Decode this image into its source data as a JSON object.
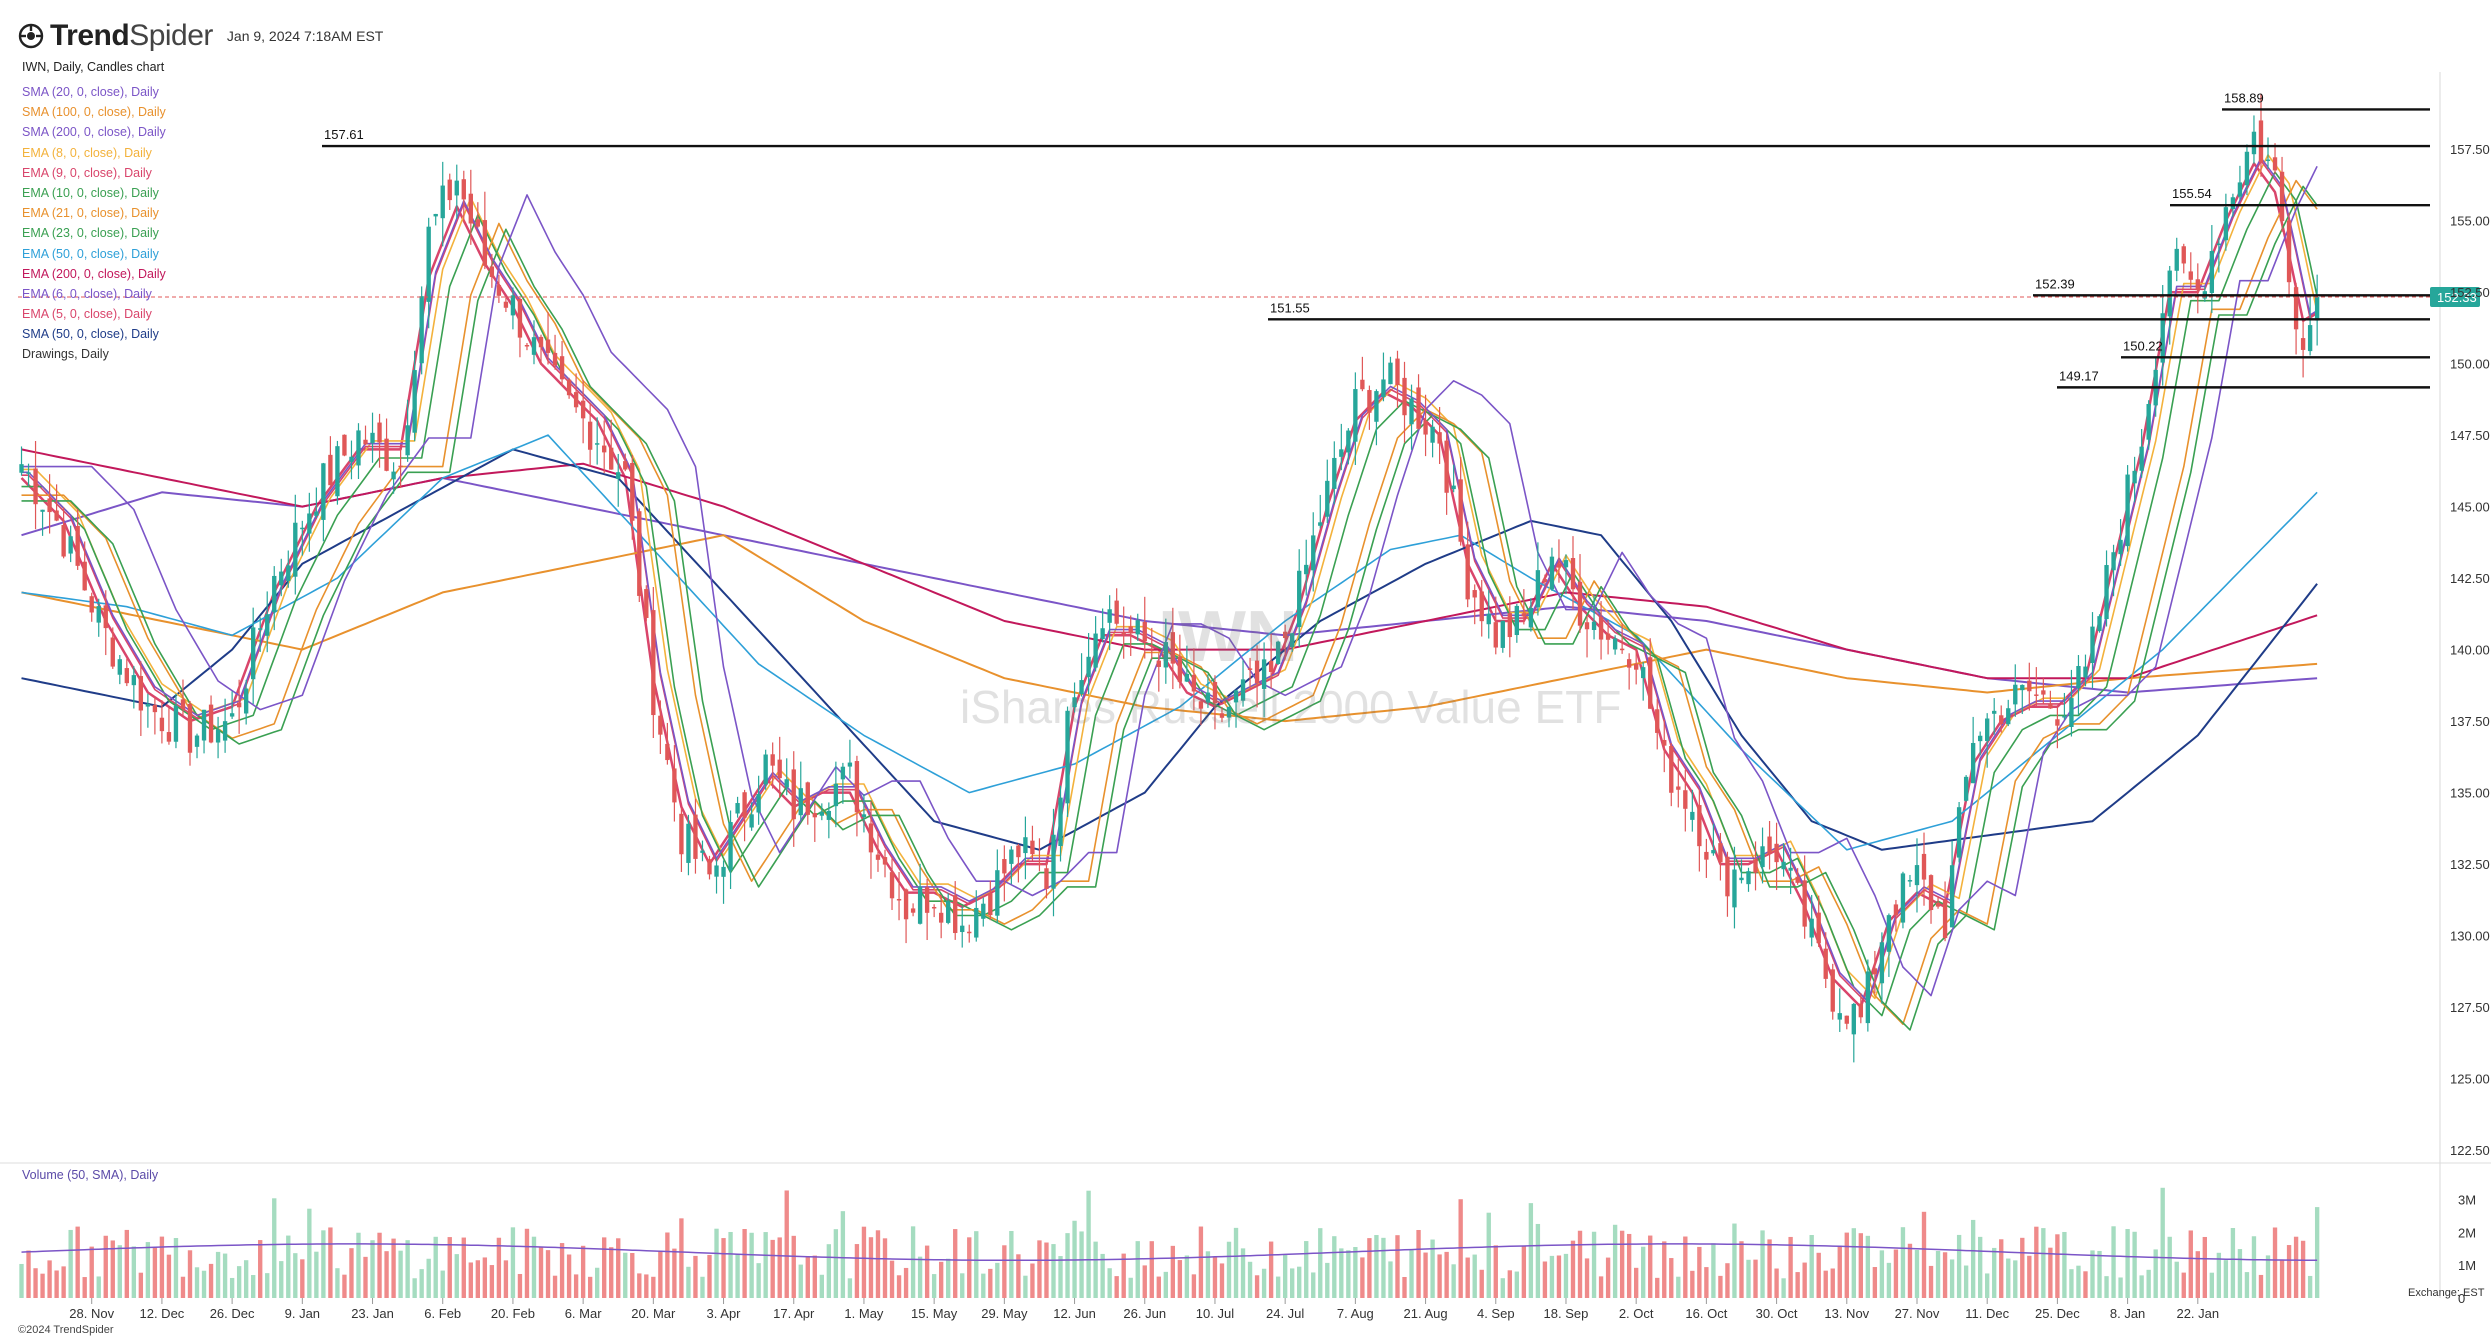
{
  "header": {
    "brand_bold": "Trend",
    "brand_light": "Spider",
    "timestamp": "Jan 9, 2024 7:18AM EST"
  },
  "legend": {
    "title": "IWN, Daily, Candles chart",
    "items": [
      {
        "label": "SMA (20, 0, close), Daily",
        "color": "#7b55c7"
      },
      {
        "label": "SMA (100, 0, close), Daily",
        "color": "#e8912d"
      },
      {
        "label": "SMA (200, 0, close), Daily",
        "color": "#7b55c7"
      },
      {
        "label": "EMA (8, 0, close), Daily",
        "color": "#f3b23c"
      },
      {
        "label": "EMA (9, 0, close), Daily",
        "color": "#d9456b"
      },
      {
        "label": "EMA (10, 0, close), Daily",
        "color": "#3aa052"
      },
      {
        "label": "EMA (21, 0, close), Daily",
        "color": "#e8912d"
      },
      {
        "label": "EMA (23, 0, close), Daily",
        "color": "#3aa052"
      },
      {
        "label": "EMA (50, 0, close), Daily",
        "color": "#2ea0d8"
      },
      {
        "label": "EMA (200, 0, close), Daily",
        "color": "#c2185b"
      },
      {
        "label": "EMA (6, 0, close), Daily",
        "color": "#7b55c7"
      },
      {
        "label": "EMA (5, 0, close), Daily",
        "color": "#d9456b"
      },
      {
        "label": "SMA (50, 0, close), Daily",
        "color": "#1f3c88"
      },
      {
        "label": "Drawings, Daily",
        "color": "#333333"
      }
    ]
  },
  "watermark": {
    "ticker": "IWN",
    "name": "iShares Russell 2000 Value ETF"
  },
  "volume_label": "Volume (50, SMA), Daily",
  "exchange_label": "Exchange: EST",
  "copyright": "©2024 TrendSpider",
  "last_price": "152.33",
  "colors": {
    "up": "#26a69a",
    "down": "#e05757",
    "vol_up": "#a5dcc0",
    "vol_down": "#ef8a8a",
    "current_price_bg": "#26a69a"
  },
  "chart_data": {
    "type": "candlestick",
    "price_axis": {
      "ticks": [
        "157.50",
        "155.00",
        "152.50",
        "150.00",
        "147.50",
        "145.00",
        "142.50",
        "140.00",
        "137.50",
        "135.00",
        "132.50",
        "130.00",
        "127.50",
        "125.00",
        "122.50"
      ],
      "ylim": [
        122.5,
        159.5
      ]
    },
    "volume_axis": {
      "ticks": [
        "3M",
        "2M",
        "1M",
        "0"
      ],
      "ylim": [
        0,
        3.6
      ]
    },
    "x_ticks": [
      "28. Nov",
      "12. Dec",
      "26. Dec",
      "9. Jan",
      "23. Jan",
      "6. Feb",
      "20. Feb",
      "6. Mar",
      "20. Mar",
      "3. Apr",
      "17. Apr",
      "1. May",
      "15. May",
      "29. May",
      "12. Jun",
      "26. Jun",
      "10. Jul",
      "24. Jul",
      "7. Aug",
      "21. Aug",
      "4. Sep",
      "18. Sep",
      "2. Oct",
      "16. Oct",
      "30. Oct",
      "13. Nov",
      "27. Nov",
      "11. Dec",
      "25. Dec",
      "8. Jan",
      "22. Jan"
    ],
    "horizontal_levels": [
      {
        "label": "158.89",
        "value": 158.89
      },
      {
        "label": "157.61",
        "value": 157.61
      },
      {
        "label": "155.54",
        "value": 155.54
      },
      {
        "label": "152.39",
        "value": 152.39
      },
      {
        "label": "151.55",
        "value": 151.55
      },
      {
        "label": "150.22",
        "value": 150.22
      },
      {
        "label": "149.17",
        "value": 149.17
      }
    ],
    "close_anchors": [
      [
        0,
        146.5
      ],
      [
        5,
        144.5
      ],
      [
        12,
        140.5
      ],
      [
        18,
        138.0
      ],
      [
        24,
        137.0
      ],
      [
        30,
        137.5
      ],
      [
        36,
        142.5
      ],
      [
        42,
        145.5
      ],
      [
        48,
        147.5
      ],
      [
        54,
        146.5
      ],
      [
        58,
        154.5
      ],
      [
        62,
        156.5
      ],
      [
        66,
        153.5
      ],
      [
        70,
        152.0
      ],
      [
        74,
        150.0
      ],
      [
        78,
        148.5
      ],
      [
        82,
        147.5
      ],
      [
        86,
        146.0
      ],
      [
        90,
        138.5
      ],
      [
        94,
        133.5
      ],
      [
        98,
        132.0
      ],
      [
        102,
        134.0
      ],
      [
        106,
        136.0
      ],
      [
        110,
        134.5
      ],
      [
        114,
        135.0
      ],
      [
        118,
        135.5
      ],
      [
        122,
        133.0
      ],
      [
        126,
        131.0
      ],
      [
        130,
        131.5
      ],
      [
        134,
        130.5
      ],
      [
        138,
        131.5
      ],
      [
        142,
        133.0
      ],
      [
        146,
        132.0
      ],
      [
        150,
        139.0
      ],
      [
        154,
        141.5
      ],
      [
        158,
        140.5
      ],
      [
        162,
        140.0
      ],
      [
        166,
        138.5
      ],
      [
        170,
        137.5
      ],
      [
        174,
        138.5
      ],
      [
        178,
        139.0
      ],
      [
        182,
        142.0
      ],
      [
        186,
        145.5
      ],
      [
        190,
        148.5
      ],
      [
        194,
        149.5
      ],
      [
        198,
        148.5
      ],
      [
        202,
        147.5
      ],
      [
        206,
        142.5
      ],
      [
        210,
        140.5
      ],
      [
        214,
        141.0
      ],
      [
        218,
        143.5
      ],
      [
        222,
        141.5
      ],
      [
        226,
        140.5
      ],
      [
        230,
        140.0
      ],
      [
        234,
        136.0
      ],
      [
        238,
        134.5
      ],
      [
        242,
        132.0
      ],
      [
        246,
        132.5
      ],
      [
        250,
        133.0
      ],
      [
        254,
        130.5
      ],
      [
        258,
        128.0
      ],
      [
        262,
        127.0
      ],
      [
        266,
        131.0
      ],
      [
        270,
        132.0
      ],
      [
        274,
        130.5
      ],
      [
        278,
        137.0
      ],
      [
        282,
        138.0
      ],
      [
        286,
        138.5
      ],
      [
        290,
        138.0
      ],
      [
        294,
        139.0
      ],
      [
        298,
        143.5
      ],
      [
        302,
        147.5
      ],
      [
        306,
        153.5
      ],
      [
        310,
        152.5
      ],
      [
        314,
        155.5
      ],
      [
        318,
        158.0
      ],
      [
        321,
        156.5
      ],
      [
        323,
        153.5
      ],
      [
        325,
        150.5
      ],
      [
        327,
        152.33
      ]
    ],
    "moving_averages": [
      {
        "legend_index": 11,
        "width": 2.5,
        "anchors": [
          [
            0,
            146
          ],
          [
            6,
            144.5
          ],
          [
            12,
            141
          ],
          [
            18,
            138.5
          ],
          [
            24,
            137.5
          ],
          [
            30,
            138
          ],
          [
            36,
            142
          ],
          [
            42,
            145
          ],
          [
            48,
            147
          ],
          [
            54,
            147
          ],
          [
            58,
            153
          ],
          [
            62,
            155.5
          ],
          [
            66,
            153.5
          ],
          [
            70,
            152
          ],
          [
            74,
            150
          ],
          [
            78,
            149
          ],
          [
            82,
            148
          ],
          [
            86,
            146
          ],
          [
            90,
            139
          ],
          [
            94,
            134.5
          ],
          [
            98,
            132.5
          ],
          [
            102,
            134
          ],
          [
            106,
            135.5
          ],
          [
            110,
            134.5
          ],
          [
            114,
            135
          ],
          [
            118,
            135
          ],
          [
            122,
            133
          ],
          [
            126,
            131.5
          ],
          [
            130,
            131.5
          ],
          [
            134,
            131
          ],
          [
            138,
            131.5
          ],
          [
            142,
            132.5
          ],
          [
            146,
            132.5
          ],
          [
            150,
            138
          ],
          [
            154,
            140.5
          ],
          [
            158,
            140.5
          ],
          [
            162,
            140
          ],
          [
            166,
            138.5
          ],
          [
            170,
            138
          ],
          [
            174,
            138.5
          ],
          [
            178,
            139
          ],
          [
            182,
            141.5
          ],
          [
            186,
            145
          ],
          [
            190,
            148
          ],
          [
            194,
            149
          ],
          [
            198,
            148.5
          ],
          [
            202,
            147.5
          ],
          [
            206,
            143
          ],
          [
            210,
            141
          ],
          [
            214,
            141
          ],
          [
            218,
            143
          ],
          [
            222,
            141.5
          ],
          [
            226,
            140.5
          ],
          [
            230,
            140
          ],
          [
            234,
            136.5
          ],
          [
            238,
            135
          ],
          [
            242,
            132.5
          ],
          [
            246,
            132.5
          ],
          [
            250,
            133
          ],
          [
            254,
            131
          ],
          [
            258,
            128.5
          ],
          [
            262,
            127.5
          ],
          [
            266,
            130.5
          ],
          [
            270,
            131.5
          ],
          [
            274,
            131
          ],
          [
            278,
            136
          ],
          [
            282,
            137.5
          ],
          [
            286,
            138
          ],
          [
            290,
            138
          ],
          [
            294,
            139
          ],
          [
            298,
            143
          ],
          [
            302,
            147
          ],
          [
            306,
            152.5
          ],
          [
            310,
            152.5
          ],
          [
            314,
            155
          ],
          [
            318,
            157
          ],
          [
            321,
            156
          ],
          [
            323,
            153.8
          ],
          [
            325,
            151.5
          ],
          [
            327,
            151.8
          ]
        ]
      },
      {
        "legend_index": 2,
        "width": 2,
        "anchors": [
          [
            0,
            144
          ],
          [
            20,
            145.5
          ],
          [
            40,
            145
          ],
          [
            60,
            146
          ],
          [
            80,
            145
          ],
          [
            100,
            144
          ],
          [
            120,
            143
          ],
          [
            140,
            142
          ],
          [
            160,
            141
          ],
          [
            180,
            140.5
          ],
          [
            200,
            141
          ],
          [
            220,
            141.5
          ],
          [
            240,
            141
          ],
          [
            260,
            140
          ],
          [
            280,
            139
          ],
          [
            300,
            138.5
          ],
          [
            327,
            139
          ]
        ]
      },
      {
        "legend_index": 1,
        "width": 2,
        "anchors": [
          [
            0,
            142
          ],
          [
            20,
            141
          ],
          [
            40,
            140
          ],
          [
            60,
            142
          ],
          [
            80,
            143
          ],
          [
            100,
            144
          ],
          [
            120,
            141
          ],
          [
            140,
            139
          ],
          [
            160,
            138
          ],
          [
            180,
            137.5
          ],
          [
            200,
            138
          ],
          [
            220,
            139
          ],
          [
            240,
            140
          ],
          [
            260,
            139
          ],
          [
            280,
            138.5
          ],
          [
            300,
            139
          ],
          [
            327,
            139.5
          ]
        ]
      },
      {
        "legend_index": 9,
        "width": 2,
        "anchors": [
          [
            0,
            147
          ],
          [
            20,
            146
          ],
          [
            40,
            145
          ],
          [
            60,
            146
          ],
          [
            80,
            146.5
          ],
          [
            100,
            145
          ],
          [
            120,
            143
          ],
          [
            140,
            141
          ],
          [
            160,
            140
          ],
          [
            180,
            140
          ],
          [
            200,
            141
          ],
          [
            220,
            142
          ],
          [
            240,
            141.5
          ],
          [
            260,
            140
          ],
          [
            280,
            139
          ],
          [
            300,
            139
          ],
          [
            327,
            141.2
          ]
        ]
      },
      {
        "legend_index": 12,
        "width": 2,
        "anchors": [
          [
            0,
            139
          ],
          [
            20,
            138
          ],
          [
            30,
            140
          ],
          [
            40,
            143
          ],
          [
            55,
            145
          ],
          [
            70,
            147
          ],
          [
            85,
            146
          ],
          [
            100,
            142
          ],
          [
            115,
            138
          ],
          [
            130,
            134
          ],
          [
            145,
            133
          ],
          [
            160,
            135
          ],
          [
            170,
            138
          ],
          [
            185,
            141
          ],
          [
            200,
            143
          ],
          [
            215,
            144.5
          ],
          [
            225,
            144
          ],
          [
            235,
            141
          ],
          [
            245,
            137
          ],
          [
            255,
            134
          ],
          [
            265,
            133
          ],
          [
            280,
            133.5
          ],
          [
            295,
            134
          ],
          [
            310,
            137
          ],
          [
            327,
            142.3
          ]
        ]
      },
      {
        "legend_index": 8,
        "width": 1.6,
        "anchors": [
          [
            0,
            142
          ],
          [
            15,
            141.5
          ],
          [
            30,
            140.5
          ],
          [
            45,
            142.5
          ],
          [
            60,
            146
          ],
          [
            75,
            147.5
          ],
          [
            90,
            143.5
          ],
          [
            105,
            139.5
          ],
          [
            120,
            137
          ],
          [
            135,
            135
          ],
          [
            150,
            136
          ],
          [
            165,
            138
          ],
          [
            180,
            141
          ],
          [
            195,
            143.5
          ],
          [
            205,
            144
          ],
          [
            215,
            142.5
          ],
          [
            230,
            140.5
          ],
          [
            245,
            136.5
          ],
          [
            260,
            133
          ],
          [
            275,
            134
          ],
          [
            290,
            137
          ],
          [
            305,
            140
          ],
          [
            327,
            145.5
          ]
        ]
      }
    ],
    "extra_mas": [
      {
        "legend_index": 3,
        "lag": 2,
        "offset": 0.3
      },
      {
        "legend_index": 4,
        "lag": 1,
        "offset": 0.1
      },
      {
        "legend_index": 5,
        "lag": 3,
        "offset": -0.3
      },
      {
        "legend_index": 6,
        "lag": 6,
        "offset": -0.6
      },
      {
        "legend_index": 7,
        "lag": 7,
        "offset": -0.8
      },
      {
        "legend_index": 10,
        "lag": 1,
        "offset": 0.2
      },
      {
        "legend_index": 0,
        "lag": 10,
        "offset": 0.4
      }
    ]
  }
}
